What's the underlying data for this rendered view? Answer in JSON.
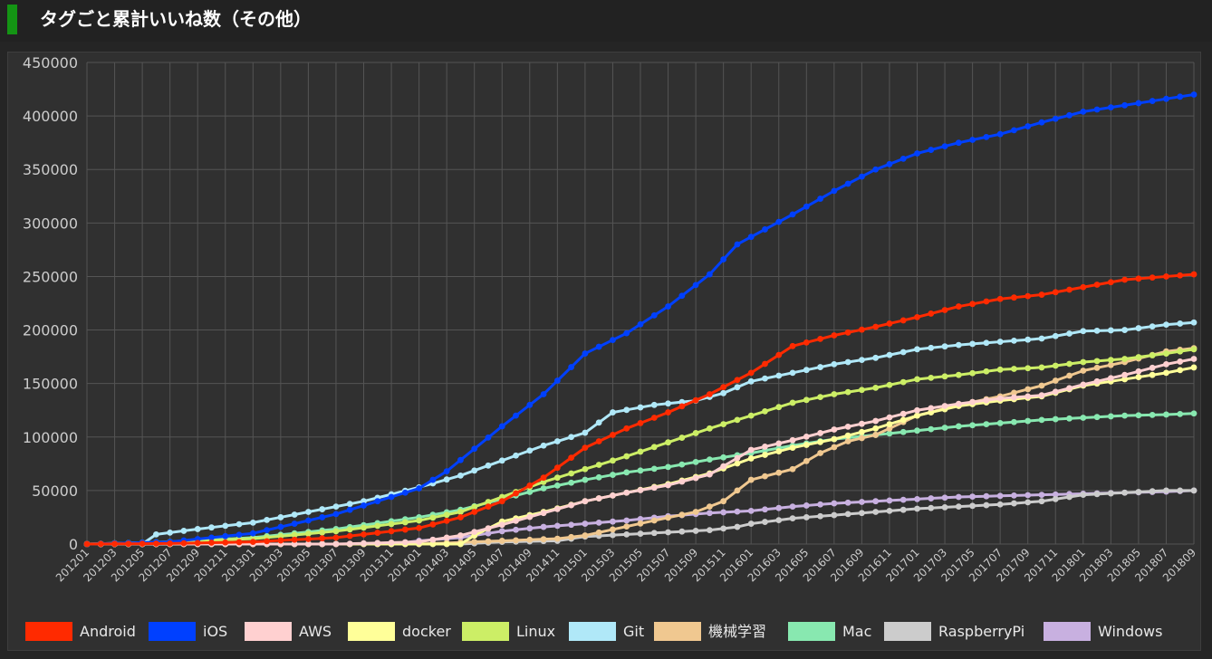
{
  "header": {
    "title": "タグごと累計いいね数（その他）"
  },
  "colors": {
    "header_accent": "#149414",
    "background": "#303030",
    "grid": "#545454",
    "text": "#cccccc"
  },
  "chart_data": {
    "type": "line",
    "title": "",
    "xlabel": "",
    "ylabel": "",
    "ylim": [
      0,
      450000
    ],
    "yticks": [
      "0",
      "50000",
      "100000",
      "150000",
      "200000",
      "250000",
      "300000",
      "350000",
      "400000",
      "450000"
    ],
    "x_tick_labels": [
      "201201",
      "201203",
      "201205",
      "201207",
      "201209",
      "201211",
      "201301",
      "201303",
      "201305",
      "201307",
      "201309",
      "201311",
      "201401",
      "201403",
      "201405",
      "201407",
      "201409",
      "201411",
      "201501",
      "201503",
      "201505",
      "201507",
      "201509",
      "201511",
      "201601",
      "201603",
      "201605",
      "201607",
      "201609",
      "201611",
      "201701",
      "201703",
      "201705",
      "201707",
      "201709",
      "201711",
      "201801",
      "201803",
      "201805",
      "201807",
      "201809"
    ],
    "x_start": "201201",
    "x_end": "201809",
    "grid": true,
    "legend_position": "bottom",
    "series": [
      {
        "name": "Android",
        "color": "#ff2a00",
        "points": [
          [
            "201201",
            0
          ],
          [
            "201207",
            500
          ],
          [
            "201301",
            2000
          ],
          [
            "201307",
            6000
          ],
          [
            "201401",
            15000
          ],
          [
            "201404",
            25000
          ],
          [
            "201407",
            40000
          ],
          [
            "201410",
            62000
          ],
          [
            "201501",
            90000
          ],
          [
            "201504",
            108000
          ],
          [
            "201507",
            123000
          ],
          [
            "201510",
            140000
          ],
          [
            "201601",
            160000
          ],
          [
            "201604",
            185000
          ],
          [
            "201607",
            195000
          ],
          [
            "201610",
            203000
          ],
          [
            "201701",
            212000
          ],
          [
            "201704",
            222000
          ],
          [
            "201707",
            229000
          ],
          [
            "201710",
            233000
          ],
          [
            "201801",
            240000
          ],
          [
            "201804",
            247000
          ],
          [
            "201807",
            250000
          ],
          [
            "201809",
            252000
          ]
        ]
      },
      {
        "name": "iOS",
        "color": "#0040ff",
        "points": [
          [
            "201201",
            0
          ],
          [
            "201207",
            2000
          ],
          [
            "201301",
            10000
          ],
          [
            "201307",
            28000
          ],
          [
            "201401",
            52000
          ],
          [
            "201403",
            68000
          ],
          [
            "201407",
            110000
          ],
          [
            "201410",
            140000
          ],
          [
            "201501",
            178000
          ],
          [
            "201504",
            197000
          ],
          [
            "201507",
            222000
          ],
          [
            "201510",
            252000
          ],
          [
            "201512",
            280000
          ],
          [
            "201604",
            308000
          ],
          [
            "201607",
            330000
          ],
          [
            "201610",
            350000
          ],
          [
            "201701",
            365000
          ],
          [
            "201704",
            375000
          ],
          [
            "201707",
            383000
          ],
          [
            "201710",
            394000
          ],
          [
            "201801",
            404000
          ],
          [
            "201804",
            410000
          ],
          [
            "201807",
            416000
          ],
          [
            "201809",
            420000
          ]
        ]
      },
      {
        "name": "AWS",
        "color": "#ffd0d0",
        "points": [
          [
            "201201",
            0
          ],
          [
            "201307",
            0
          ],
          [
            "201401",
            2000
          ],
          [
            "201404",
            8000
          ],
          [
            "201407",
            18000
          ],
          [
            "201410",
            29000
          ],
          [
            "201501",
            40000
          ],
          [
            "201504",
            48000
          ],
          [
            "201507",
            55000
          ],
          [
            "201510",
            65000
          ],
          [
            "201601",
            88000
          ],
          [
            "201604",
            97000
          ],
          [
            "201607",
            107000
          ],
          [
            "201610",
            115000
          ],
          [
            "201701",
            125000
          ],
          [
            "201704",
            131000
          ],
          [
            "201707",
            136000
          ],
          [
            "201710",
            139000
          ],
          [
            "201801",
            149000
          ],
          [
            "201804",
            158000
          ],
          [
            "201807",
            168000
          ],
          [
            "201809",
            173000
          ]
        ]
      },
      {
        "name": "docker",
        "color": "#ffff99",
        "points": [
          [
            "201201",
            0
          ],
          [
            "201404",
            0
          ],
          [
            "201405",
            8000
          ],
          [
            "201407",
            21000
          ],
          [
            "201410",
            30000
          ],
          [
            "201501",
            40000
          ],
          [
            "201504",
            48000
          ],
          [
            "201507",
            56000
          ],
          [
            "201510",
            66000
          ],
          [
            "201601",
            80000
          ],
          [
            "201604",
            90000
          ],
          [
            "201607",
            98000
          ],
          [
            "201610",
            108000
          ],
          [
            "201701",
            120000
          ],
          [
            "201704",
            129000
          ],
          [
            "201707",
            134000
          ],
          [
            "201710",
            138000
          ],
          [
            "201801",
            148000
          ],
          [
            "201804",
            154000
          ],
          [
            "201807",
            160000
          ],
          [
            "201809",
            165000
          ]
        ]
      },
      {
        "name": "Linux",
        "color": "#ccee66",
        "points": [
          [
            "201201",
            0
          ],
          [
            "201207",
            2000
          ],
          [
            "201301",
            5000
          ],
          [
            "201307",
            12000
          ],
          [
            "201401",
            22000
          ],
          [
            "201404",
            30000
          ],
          [
            "201407",
            44000
          ],
          [
            "201410",
            58000
          ],
          [
            "201501",
            70000
          ],
          [
            "201504",
            82000
          ],
          [
            "201507",
            95000
          ],
          [
            "201510",
            108000
          ],
          [
            "201601",
            120000
          ],
          [
            "201604",
            132000
          ],
          [
            "201607",
            140000
          ],
          [
            "201610",
            146000
          ],
          [
            "201701",
            154000
          ],
          [
            "201704",
            158000
          ],
          [
            "201707",
            163000
          ],
          [
            "201710",
            165000
          ],
          [
            "201801",
            170000
          ],
          [
            "201804",
            173000
          ],
          [
            "201807",
            178000
          ],
          [
            "201809",
            182000
          ]
        ]
      },
      {
        "name": "Git",
        "color": "#b0e8f8",
        "points": [
          [
            "201201",
            0
          ],
          [
            "201205",
            0
          ],
          [
            "201206",
            9000
          ],
          [
            "201209",
            14000
          ],
          [
            "201301",
            20000
          ],
          [
            "201305",
            30000
          ],
          [
            "201309",
            40000
          ],
          [
            "201401",
            53000
          ],
          [
            "201404",
            64000
          ],
          [
            "201407",
            78000
          ],
          [
            "201410",
            92000
          ],
          [
            "201501",
            104000
          ],
          [
            "201503",
            123000
          ],
          [
            "201506",
            130000
          ],
          [
            "201509",
            134000
          ],
          [
            "201511",
            141000
          ],
          [
            "201601",
            152000
          ],
          [
            "201604",
            160000
          ],
          [
            "201607",
            168000
          ],
          [
            "201610",
            174000
          ],
          [
            "201701",
            182000
          ],
          [
            "201704",
            186000
          ],
          [
            "201707",
            189000
          ],
          [
            "201710",
            192000
          ],
          [
            "201801",
            199000
          ],
          [
            "201804",
            200000
          ],
          [
            "201807",
            205000
          ],
          [
            "201809",
            207000
          ]
        ]
      },
      {
        "name": "機械学習",
        "color": "#f0c890",
        "points": [
          [
            "201201",
            0
          ],
          [
            "201401",
            0
          ],
          [
            "201407",
            3000
          ],
          [
            "201411",
            5000
          ],
          [
            "201501",
            8000
          ],
          [
            "201506",
            22000
          ],
          [
            "201509",
            30000
          ],
          [
            "201511",
            40000
          ],
          [
            "201601",
            60000
          ],
          [
            "201604",
            70000
          ],
          [
            "201606",
            85000
          ],
          [
            "201608",
            96000
          ],
          [
            "201610",
            102000
          ],
          [
            "201701",
            120000
          ],
          [
            "201704",
            130000
          ],
          [
            "201707",
            138000
          ],
          [
            "201710",
            148000
          ],
          [
            "201801",
            162000
          ],
          [
            "201804",
            170000
          ],
          [
            "201807",
            180000
          ],
          [
            "201809",
            183000
          ]
        ]
      },
      {
        "name": "Mac",
        "color": "#88e8b0",
        "points": [
          [
            "201201",
            0
          ],
          [
            "201207",
            2000
          ],
          [
            "201301",
            6000
          ],
          [
            "201307",
            14000
          ],
          [
            "201401",
            25000
          ],
          [
            "201404",
            32000
          ],
          [
            "201407",
            42000
          ],
          [
            "201410",
            52000
          ],
          [
            "201501",
            60000
          ],
          [
            "201504",
            67000
          ],
          [
            "201507",
            72000
          ],
          [
            "201510",
            79000
          ],
          [
            "201601",
            85000
          ],
          [
            "201604",
            92000
          ],
          [
            "201607",
            98000
          ],
          [
            "201610",
            102000
          ],
          [
            "201701",
            106000
          ],
          [
            "201704",
            110000
          ],
          [
            "201707",
            113000
          ],
          [
            "201710",
            116000
          ],
          [
            "201801",
            118000
          ],
          [
            "201804",
            120000
          ],
          [
            "201807",
            121000
          ],
          [
            "201809",
            122000
          ]
        ]
      },
      {
        "name": "RaspberryPi",
        "color": "#cccccc",
        "points": [
          [
            "201201",
            0
          ],
          [
            "201404",
            0
          ],
          [
            "201407",
            2000
          ],
          [
            "201411",
            3000
          ],
          [
            "201501",
            7000
          ],
          [
            "201504",
            9000
          ],
          [
            "201507",
            11000
          ],
          [
            "201510",
            13000
          ],
          [
            "201512",
            16000
          ],
          [
            "201601",
            19000
          ],
          [
            "201604",
            24000
          ],
          [
            "201607",
            27000
          ],
          [
            "201610",
            30000
          ],
          [
            "201701",
            33000
          ],
          [
            "201704",
            35000
          ],
          [
            "201707",
            37000
          ],
          [
            "201710",
            40000
          ],
          [
            "201801",
            46000
          ],
          [
            "201804",
            48000
          ],
          [
            "201807",
            50000
          ],
          [
            "201809",
            50000
          ]
        ]
      },
      {
        "name": "Windows",
        "color": "#c8b0e0",
        "points": [
          [
            "201201",
            0
          ],
          [
            "201311",
            0
          ],
          [
            "201401",
            3000
          ],
          [
            "201404",
            6000
          ],
          [
            "201407",
            12000
          ],
          [
            "201410",
            16000
          ],
          [
            "201501",
            19000
          ],
          [
            "201504",
            22000
          ],
          [
            "201507",
            26000
          ],
          [
            "201510",
            29000
          ],
          [
            "201601",
            31000
          ],
          [
            "201604",
            35000
          ],
          [
            "201607",
            38000
          ],
          [
            "201610",
            40000
          ],
          [
            "201701",
            42000
          ],
          [
            "201704",
            44000
          ],
          [
            "201707",
            45000
          ],
          [
            "201710",
            46000
          ],
          [
            "201801",
            47000
          ],
          [
            "201804",
            48000
          ],
          [
            "201807",
            49000
          ],
          [
            "201809",
            50000
          ]
        ]
      }
    ]
  }
}
